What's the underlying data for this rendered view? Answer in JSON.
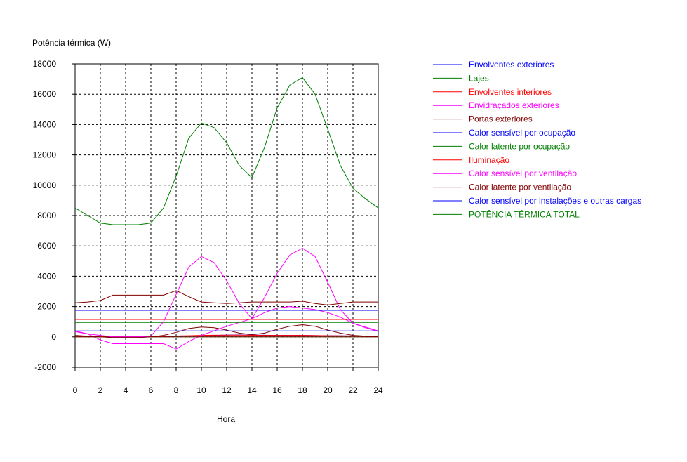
{
  "chart_data": {
    "type": "line",
    "ylabel": "Potência térmica (W)",
    "xlabel": "Hora",
    "xlim": [
      0,
      24
    ],
    "ylim": [
      -2000,
      18000
    ],
    "x_ticks": [
      0,
      2,
      4,
      6,
      8,
      10,
      12,
      14,
      16,
      18,
      20,
      22,
      24
    ],
    "y_ticks": [
      -2000,
      0,
      2000,
      4000,
      6000,
      8000,
      10000,
      12000,
      14000,
      16000,
      18000
    ],
    "grid": true,
    "legend_position": "right",
    "x": [
      0,
      1,
      2,
      3,
      4,
      5,
      6,
      7,
      8,
      9,
      10,
      11,
      12,
      13,
      14,
      15,
      16,
      17,
      18,
      19,
      20,
      21,
      22,
      23,
      24
    ],
    "series": [
      {
        "name": "Envolventes exteriores",
        "color": "#0000ff",
        "values": [
          50,
          50,
          50,
          50,
          50,
          50,
          50,
          50,
          50,
          60,
          80,
          100,
          120,
          130,
          120,
          110,
          100,
          100,
          100,
          90,
          80,
          70,
          60,
          50,
          50
        ]
      },
      {
        "name": "Lajes",
        "color": "#008000",
        "values": [
          0,
          0,
          0,
          0,
          0,
          0,
          0,
          0,
          0,
          0,
          0,
          0,
          0,
          0,
          0,
          0,
          0,
          0,
          0,
          0,
          0,
          0,
          0,
          0,
          0
        ]
      },
      {
        "name": "Envolventes interiores",
        "color": "#ff0000",
        "values": [
          50,
          40,
          30,
          30,
          30,
          30,
          30,
          40,
          60,
          80,
          100,
          110,
          120,
          120,
          110,
          100,
          100,
          100,
          100,
          90,
          80,
          70,
          60,
          50,
          50
        ]
      },
      {
        "name": "Envidraçados exteriores",
        "color": "#ff00ff",
        "values": [
          400,
          200,
          -200,
          -450,
          -450,
          -450,
          -450,
          -450,
          -800,
          -300,
          100,
          400,
          700,
          950,
          1200,
          1600,
          1900,
          2000,
          1900,
          1800,
          1600,
          1300,
          900,
          650,
          400
        ]
      },
      {
        "name": "Portas exteriores",
        "color": "#800000",
        "values": [
          0,
          0,
          0,
          0,
          0,
          0,
          0,
          0,
          0,
          0,
          0,
          0,
          0,
          0,
          0,
          0,
          0,
          0,
          0,
          0,
          0,
          0,
          0,
          0,
          0
        ]
      },
      {
        "name": "Calor sensível por ocupação",
        "color": "#0000ff",
        "values": [
          1750,
          1750,
          1750,
          1750,
          1750,
          1750,
          1750,
          1750,
          1750,
          1750,
          1750,
          1750,
          1750,
          1750,
          1750,
          1750,
          1750,
          1750,
          1750,
          1750,
          1750,
          1750,
          1750,
          1750,
          1750
        ]
      },
      {
        "name": "Calor latente por ocupação",
        "color": "#008000",
        "values": [
          950,
          950,
          950,
          950,
          950,
          950,
          950,
          950,
          950,
          950,
          950,
          950,
          950,
          950,
          950,
          950,
          950,
          950,
          950,
          950,
          950,
          950,
          950,
          950,
          950
        ]
      },
      {
        "name": "Iluminação",
        "color": "#ff0000",
        "values": [
          1150,
          1150,
          1150,
          1150,
          1150,
          1150,
          1150,
          1150,
          1150,
          1150,
          1150,
          1150,
          1150,
          1150,
          1150,
          1150,
          1150,
          1150,
          1150,
          1150,
          1150,
          1150,
          1150,
          1150,
          1150
        ]
      },
      {
        "name": "Calor sensível por ventilação",
        "color": "#ff00ff",
        "values": [
          350,
          200,
          100,
          0,
          0,
          0,
          50,
          1000,
          2800,
          4600,
          5300,
          4900,
          3700,
          2200,
          1200,
          2600,
          4200,
          5400,
          5850,
          5300,
          3600,
          1800,
          900,
          600,
          350
        ]
      },
      {
        "name": "Calor latente por ventilação",
        "color": "#800000",
        "values": [
          100,
          50,
          0,
          -50,
          -50,
          -50,
          0,
          100,
          300,
          550,
          650,
          600,
          450,
          250,
          150,
          250,
          500,
          700,
          800,
          700,
          450,
          250,
          100,
          50,
          0
        ]
      },
      {
        "name": "Calor sensível por instalações e outras cargas",
        "color": "#0000ff",
        "values": [
          400,
          400,
          400,
          400,
          400,
          400,
          400,
          400,
          400,
          400,
          400,
          400,
          400,
          400,
          400,
          400,
          400,
          400,
          400,
          400,
          400,
          400,
          400,
          400,
          400
        ]
      },
      {
        "name": "POTÊNCIA TÉRMICA TOTAL",
        "color": "#008000",
        "values": [
          8500,
          8000,
          7500,
          7400,
          7400,
          7400,
          7500,
          8500,
          10600,
          13100,
          14100,
          13800,
          12800,
          11300,
          10500,
          12500,
          15100,
          16600,
          17100,
          16000,
          13700,
          11300,
          9800,
          9100,
          8500
        ]
      }
    ],
    "extra_lines": [
      {
        "color": "#800000",
        "values": [
          2250,
          2300,
          2400,
          2750,
          2750,
          2750,
          2750,
          2750,
          3050,
          2650,
          2300,
          2250,
          2200,
          2250,
          2300,
          2300,
          2300,
          2300,
          2350,
          2200,
          2100,
          2200,
          2300,
          2300,
          2300
        ]
      }
    ]
  }
}
